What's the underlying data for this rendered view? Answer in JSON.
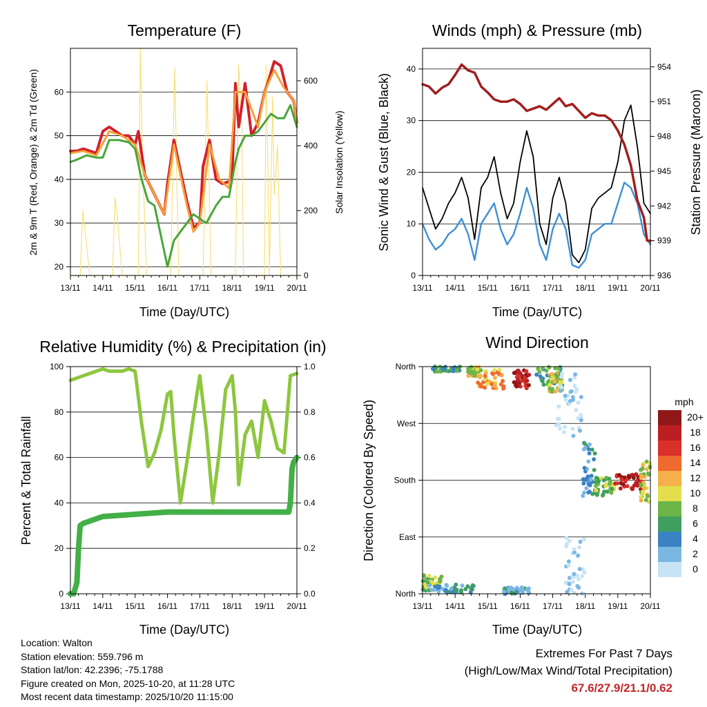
{
  "panels": {
    "temperature": {
      "title": "Temperature (F)",
      "ylabel_left": "2m & 9m T (Red, Orange) & 2m Td (Green)",
      "ylabel_right": "Solar Insolation (Yellow)",
      "xlabel": "Time (Day/UTC)"
    },
    "winds": {
      "title": "Winds (mph) & Pressure (mb)",
      "ylabel_left": "Sonic Wind & Gust (Blue, Black)",
      "ylabel_right": "Station Pressure (Maroon)",
      "xlabel": "Time (Day/UTC)"
    },
    "humidity": {
      "title": "Relative Humidity (%) & Precipitation (in)",
      "ylabel_left": "Percent & Total Rainfall",
      "xlabel": "Time (Day/UTC)"
    },
    "direction": {
      "title": "Wind Direction",
      "ylabel_left": "Direction (Colored By Speed)",
      "xlabel": "Time (Day/UTC)",
      "legend_unit": "mph"
    }
  },
  "chart_data": [
    {
      "id": "temperature",
      "type": "line",
      "categories": [
        "13/11",
        "14/11",
        "15/11",
        "16/11",
        "17/11",
        "18/11",
        "19/11",
        "20/11"
      ],
      "xlim": [
        13,
        20
      ],
      "ylim_left": [
        18,
        70
      ],
      "yticks_left": [
        20,
        30,
        40,
        50,
        60
      ],
      "ylim_right": [
        0,
        700
      ],
      "yticks_right": [
        0,
        200,
        400,
        600
      ],
      "series": [
        {
          "name": "2m T",
          "color": "#d4202a",
          "x": [
            13,
            13.2,
            13.4,
            13.6,
            13.8,
            14,
            14.2,
            14.4,
            14.6,
            14.8,
            15,
            15.1,
            15.3,
            15.5,
            15.7,
            15.9,
            16,
            16.2,
            16.4,
            16.6,
            16.8,
            17,
            17.1,
            17.3,
            17.5,
            17.7,
            17.9,
            18,
            18.1,
            18.2,
            18.4,
            18.6,
            18.8,
            19,
            19.1,
            19.3,
            19.5,
            19.7,
            19.9,
            20
          ],
          "y": [
            46.5,
            46.5,
            47,
            46.5,
            46,
            51,
            52,
            51,
            50,
            50,
            48,
            51,
            41,
            38,
            35,
            32,
            39,
            49,
            42,
            35,
            29,
            30,
            43,
            49,
            40,
            39,
            39.5,
            41,
            62,
            52,
            62,
            50,
            53,
            60,
            62,
            67,
            66,
            60,
            58,
            53
          ]
        },
        {
          "name": "9m T",
          "color": "#f5a13b",
          "x": [
            13,
            13.4,
            13.8,
            14.2,
            14.6,
            15,
            15.3,
            15.5,
            15.9,
            16.2,
            16.6,
            16.8,
            17,
            17.3,
            17.6,
            17.9,
            18.1,
            18.4,
            18.8,
            19,
            19.3,
            19.6,
            19.9,
            20
          ],
          "y": [
            46,
            46.5,
            45.5,
            51,
            50,
            48,
            41,
            38,
            32,
            48,
            34,
            28,
            30,
            48,
            40,
            38,
            60,
            60,
            52,
            60,
            65,
            61,
            58,
            53
          ]
        },
        {
          "name": "2m Td",
          "color": "#48a53a",
          "x": [
            13,
            13.2,
            13.5,
            13.8,
            14,
            14.2,
            14.5,
            14.8,
            15,
            15.2,
            15.4,
            15.6,
            15.8,
            16,
            16.2,
            16.4,
            16.6,
            16.8,
            17,
            17.2,
            17.5,
            17.7,
            17.9,
            18.1,
            18.2,
            18.4,
            18.6,
            18.8,
            19,
            19.2,
            19.4,
            19.6,
            19.8,
            20
          ],
          "y": [
            44,
            44.5,
            45.5,
            45,
            45,
            49,
            49,
            48.5,
            47,
            40,
            35,
            34,
            27,
            20,
            26,
            28,
            30,
            32,
            31,
            30,
            34,
            36,
            36,
            44,
            47,
            50,
            50,
            51,
            53,
            55,
            54,
            54,
            57,
            52
          ]
        },
        {
          "name": "Solar Insolation",
          "color": "#f7e07a",
          "axis": "right",
          "x": [
            13,
            13.3,
            13.38,
            13.46,
            13.6,
            14,
            14.3,
            14.38,
            14.46,
            14.6,
            15,
            15.1,
            15.16,
            15.22,
            15.35,
            16,
            16.1,
            16.22,
            16.35,
            17,
            17.1,
            17.22,
            17.35,
            18,
            18.1,
            18.2,
            18.3,
            18.35,
            19,
            19.05,
            19.1,
            19.15,
            19.25,
            19.3,
            19.4,
            19.5,
            20
          ],
          "y": [
            0,
            0,
            200,
            130,
            0,
            0,
            0,
            240,
            170,
            0,
            0,
            0,
            700,
            400,
            0,
            0,
            0,
            640,
            0,
            0,
            0,
            600,
            0,
            0,
            0,
            650,
            450,
            0,
            0,
            650,
            350,
            0,
            550,
            250,
            400,
            0,
            0
          ]
        }
      ]
    },
    {
      "id": "winds",
      "type": "line",
      "categories": [
        "13/11",
        "14/11",
        "15/11",
        "16/11",
        "17/11",
        "18/11",
        "19/11",
        "20/11"
      ],
      "xlim": [
        13,
        20
      ],
      "ylim_left": [
        0,
        44
      ],
      "yticks_left": [
        0,
        10,
        20,
        30,
        40
      ],
      "ylim_right": [
        936,
        955.6
      ],
      "yticks_right": [
        936,
        939,
        942,
        945,
        948,
        951,
        954
      ],
      "series": [
        {
          "name": "Sonic Wind",
          "color": "#3d8fd6",
          "x": [
            13,
            13.2,
            13.4,
            13.6,
            13.8,
            14,
            14.2,
            14.4,
            14.6,
            14.8,
            15,
            15.2,
            15.4,
            15.6,
            15.8,
            16,
            16.2,
            16.4,
            16.6,
            16.8,
            17,
            17.2,
            17.4,
            17.6,
            17.8,
            18,
            18.2,
            18.4,
            18.6,
            18.8,
            19,
            19.2,
            19.4,
            19.6,
            19.8,
            20
          ],
          "y": [
            10,
            7,
            5,
            6,
            8,
            9,
            11,
            8,
            3,
            10,
            12,
            14,
            9,
            6,
            8,
            12,
            17,
            13,
            6,
            3,
            9,
            12,
            9,
            2,
            1.5,
            3,
            8,
            9,
            10,
            10,
            14,
            18,
            17,
            14,
            8,
            6
          ]
        },
        {
          "name": "Gust",
          "color": "#000000",
          "x": [
            13,
            13.2,
            13.4,
            13.6,
            13.8,
            14,
            14.2,
            14.4,
            14.6,
            14.8,
            15,
            15.2,
            15.4,
            15.6,
            15.8,
            16,
            16.2,
            16.4,
            16.6,
            16.8,
            17,
            17.2,
            17.4,
            17.6,
            17.8,
            18,
            18.2,
            18.4,
            18.6,
            18.8,
            19,
            19.2,
            19.4,
            19.6,
            19.8,
            20
          ],
          "y": [
            17,
            13,
            9,
            11,
            14,
            16,
            19,
            15,
            7,
            17,
            19,
            23,
            16,
            11,
            14,
            22,
            28,
            23,
            10,
            6,
            15,
            19,
            14,
            4,
            2.5,
            5,
            13,
            15,
            16,
            17,
            22,
            30,
            33,
            25,
            14,
            12
          ]
        },
        {
          "name": "Station Pressure",
          "color": "#a31d1d",
          "axis": "right",
          "x": [
            13,
            13.2,
            13.4,
            13.6,
            13.8,
            14,
            14.2,
            14.4,
            14.6,
            14.8,
            15,
            15.2,
            15.4,
            15.6,
            15.8,
            16,
            16.2,
            16.4,
            16.6,
            16.8,
            17,
            17.2,
            17.4,
            17.6,
            17.8,
            18,
            18.2,
            18.4,
            18.6,
            18.8,
            19,
            19.2,
            19.4,
            19.6,
            19.8,
            19.9,
            20
          ],
          "y": [
            952.5,
            952.3,
            951.7,
            952.2,
            952.5,
            953.3,
            954.2,
            953.7,
            953.5,
            952.3,
            951.8,
            951.2,
            951,
            951,
            951.2,
            950.8,
            950.2,
            950.4,
            950.6,
            950.3,
            950.8,
            951.3,
            950.6,
            950.8,
            950.2,
            949.6,
            950,
            949.8,
            949.8,
            949.4,
            948.5,
            947.3,
            945.5,
            942.5,
            941,
            939,
            939
          ]
        }
      ]
    },
    {
      "id": "humidity",
      "type": "line",
      "categories": [
        "13/11",
        "14/11",
        "15/11",
        "16/11",
        "17/11",
        "18/11",
        "19/11",
        "20/11"
      ],
      "xlim": [
        13,
        20
      ],
      "ylim_left": [
        0,
        100
      ],
      "yticks_left": [
        0,
        20,
        40,
        60,
        80,
        100
      ],
      "ylim_right": [
        0.0,
        1.0
      ],
      "yticks_right": [
        0.0,
        0.2,
        0.4,
        0.6,
        0.8,
        1.0
      ],
      "series": [
        {
          "name": "Relative Humidity",
          "color": "#8dc63f",
          "x": [
            13,
            13.2,
            13.4,
            13.6,
            13.8,
            14,
            14.2,
            14.4,
            14.6,
            14.8,
            15,
            15.2,
            15.4,
            15.6,
            15.8,
            16,
            16.1,
            16.2,
            16.4,
            16.6,
            16.8,
            17,
            17.2,
            17.4,
            17.6,
            17.8,
            18,
            18.1,
            18.2,
            18.4,
            18.6,
            18.8,
            19,
            19.2,
            19.4,
            19.6,
            19.8,
            20
          ],
          "y": [
            94,
            95,
            96,
            97,
            98,
            99,
            98,
            98,
            98,
            99,
            98,
            75,
            56,
            62,
            72,
            88,
            89,
            70,
            40,
            58,
            78,
            96,
            72,
            40,
            62,
            90,
            96,
            80,
            48,
            70,
            76,
            60,
            85,
            76,
            64,
            62,
            96,
            97
          ]
        },
        {
          "name": "Total Precipitation",
          "color": "#43b047",
          "axis": "right",
          "x": [
            13,
            13.1,
            13.2,
            13.25,
            13.3,
            13.4,
            13.6,
            13.8,
            14,
            14.5,
            15,
            15.5,
            16,
            16.5,
            17,
            17.5,
            18,
            18.5,
            19,
            19.5,
            19.75,
            19.8,
            19.85,
            19.9,
            20
          ],
          "y": [
            0,
            0,
            0.05,
            0.2,
            0.3,
            0.31,
            0.32,
            0.33,
            0.34,
            0.345,
            0.35,
            0.355,
            0.36,
            0.36,
            0.36,
            0.36,
            0.36,
            0.36,
            0.36,
            0.36,
            0.36,
            0.4,
            0.55,
            0.58,
            0.6
          ]
        }
      ]
    },
    {
      "id": "direction",
      "type": "scatter",
      "categories": [
        "13/11",
        "14/11",
        "15/11",
        "16/11",
        "17/11",
        "18/11",
        "19/11",
        "20/11"
      ],
      "xlim": [
        13,
        20
      ],
      "ylim": [
        0,
        360
      ],
      "yticks": [
        0,
        90,
        180,
        270,
        360
      ],
      "ytick_labels": [
        "North",
        "East",
        "South",
        "West",
        "North"
      ],
      "legend_levels": [
        "0",
        "2",
        "4",
        "6",
        "8",
        "10",
        "12",
        "14",
        "16",
        "18",
        "20+"
      ],
      "legend_colors": [
        "#c6e4f5",
        "#7ab8e3",
        "#3b82c4",
        "#3f9f5e",
        "#6cb548",
        "#e4de4c",
        "#f5b04b",
        "#ef6a2e",
        "#d8302b",
        "#bb1f22",
        "#8f1717"
      ],
      "clusters": [
        {
          "x0": 13.3,
          "x1": 14.2,
          "y0": 352,
          "y1": 360,
          "speed": 6
        },
        {
          "x0": 13.0,
          "x1": 13.6,
          "y0": 5,
          "y1": 30,
          "speed": 8
        },
        {
          "x0": 13.2,
          "x1": 14.6,
          "y0": 2,
          "y1": 15,
          "speed": 4
        },
        {
          "x0": 14.4,
          "x1": 14.8,
          "y0": 345,
          "y1": 360,
          "speed": 10
        },
        {
          "x0": 14.7,
          "x1": 15.5,
          "y0": 325,
          "y1": 355,
          "speed": 12
        },
        {
          "x0": 15.8,
          "x1": 16.3,
          "y0": 325,
          "y1": 355,
          "speed": 18
        },
        {
          "x0": 16.5,
          "x1": 17.3,
          "y0": 330,
          "y1": 360,
          "speed": 6
        },
        {
          "x0": 16.9,
          "x1": 17.3,
          "y0": 320,
          "y1": 350,
          "speed": 10
        },
        {
          "x0": 17.1,
          "x1": 17.9,
          "y0": 250,
          "y1": 350,
          "speed": 0
        },
        {
          "x0": 17.4,
          "x1": 18.0,
          "y0": 0,
          "y1": 90,
          "speed": 0
        },
        {
          "x0": 17.9,
          "x1": 18.3,
          "y0": 150,
          "y1": 240,
          "speed": 4
        },
        {
          "x0": 18.3,
          "x1": 18.9,
          "y0": 155,
          "y1": 185,
          "speed": 8
        },
        {
          "x0": 18.9,
          "x1": 19.8,
          "y0": 165,
          "y1": 190,
          "speed": 18
        },
        {
          "x0": 19.7,
          "x1": 20.0,
          "y0": 140,
          "y1": 210,
          "speed": 10
        },
        {
          "x0": 15.5,
          "x1": 16.3,
          "y0": 0,
          "y1": 10,
          "speed": 4
        }
      ]
    }
  ],
  "footer": {
    "location": "Location: Walton",
    "elevation": "Station elevation: 559.796 m",
    "latlon": "Station lat/lon: 42.2396; -75.1788",
    "created": "Figure created on Mon, 2025-10-20, at 11:28 UTC",
    "recent": "Most recent data timestamp: 2025/10/20 11:15:00"
  },
  "extremes": {
    "title": "Extremes For Past 7 Days",
    "subtitle": "(High/Low/Max Wind/Total Precipitation)",
    "values": "67.6/27.9/21.1/0.62"
  }
}
